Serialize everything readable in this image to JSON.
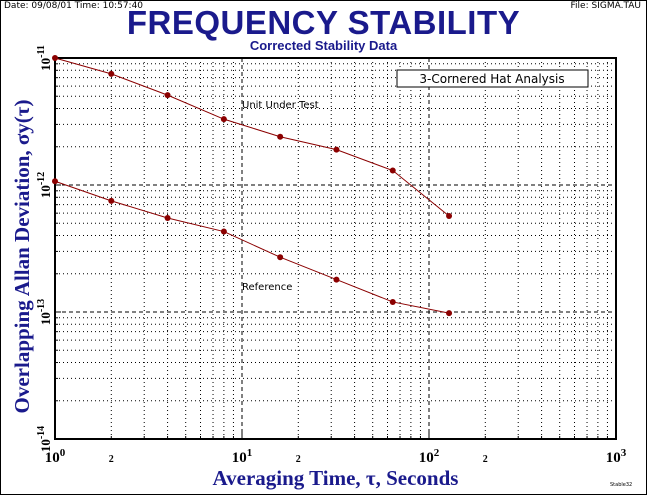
{
  "header": {
    "date": "Date: 09/08/01  Time: 10:57:40",
    "file": "File: SIGMA.TAU",
    "footer": "Stable32"
  },
  "chart_data": {
    "type": "line",
    "title": "FREQUENCY STABILITY",
    "subtitle": "Corrected Stability Data",
    "xlabel": "Averaging Time, τ, Seconds",
    "ylabel": "Overlapping Allan Deviation, σy(τ)",
    "xscale": "log",
    "yscale": "log",
    "xlim": [
      1,
      1000
    ],
    "ylim": [
      1e-14,
      1e-11
    ],
    "x_tick_labels": [
      {
        "base": "10",
        "exp": "0"
      },
      {
        "base": "2",
        "exp": ""
      },
      {
        "base": "10",
        "exp": "1"
      },
      {
        "base": "2",
        "exp": ""
      },
      {
        "base": "10",
        "exp": "2"
      },
      {
        "base": "2",
        "exp": ""
      },
      {
        "base": "10",
        "exp": "3"
      }
    ],
    "y_tick_labels": [
      {
        "base": "10",
        "exp": "-11"
      },
      {
        "base": "10",
        "exp": "-12"
      },
      {
        "base": "10",
        "exp": "-13"
      },
      {
        "base": "10",
        "exp": "-14"
      }
    ],
    "grid": true,
    "annotation_box": "3-Cornered Hat Analysis",
    "x": [
      1,
      2,
      4,
      8,
      16,
      32,
      64,
      128
    ],
    "series": [
      {
        "name": "Unit Under Test",
        "values": [
          1e-11,
          7.5e-12,
          5.1e-12,
          3.3e-12,
          2.4e-12,
          1.9e-12,
          1.3e-12,
          5.7e-13
        ]
      },
      {
        "name": "Reference",
        "values": [
          1.07e-12,
          7.5e-13,
          5.5e-13,
          4.3e-13,
          2.7e-13,
          1.8e-13,
          1.2e-13,
          9.8e-14
        ]
      }
    ],
    "colors": {
      "series": "#8b0000",
      "title": "#1a1a8c"
    }
  }
}
